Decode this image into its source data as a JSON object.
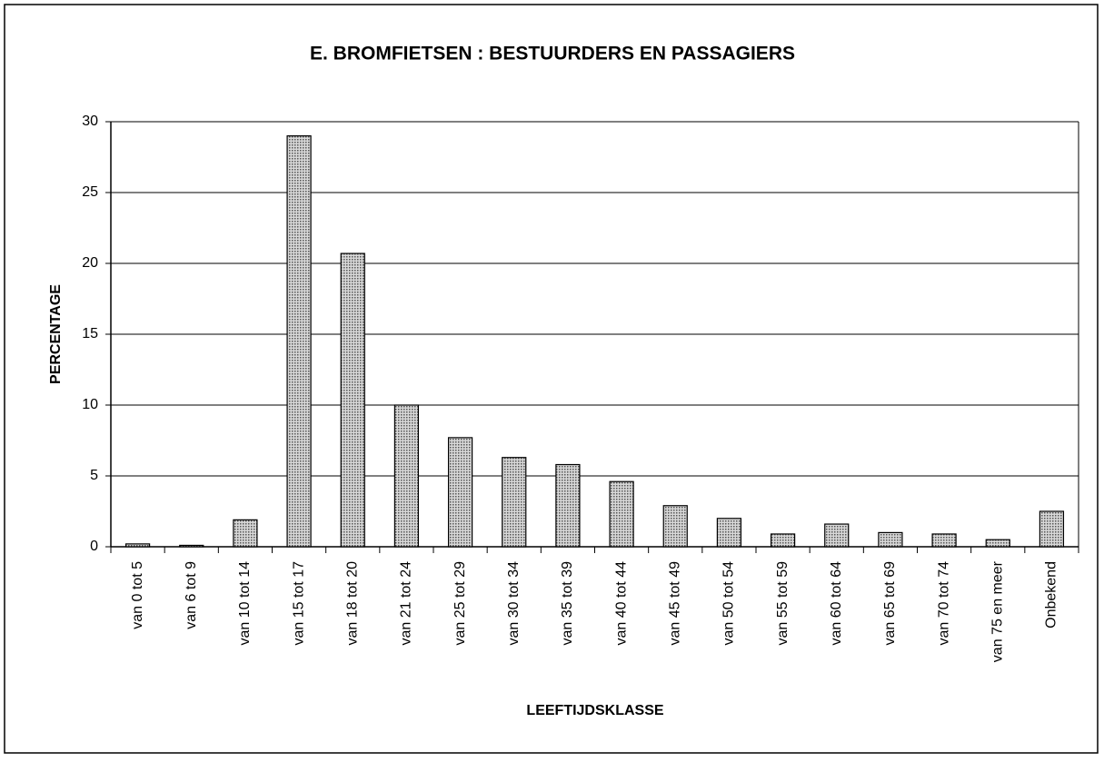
{
  "chart_data": {
    "type": "bar",
    "title": "E. BROMFIETSEN : BESTUURDERS EN PASSAGIERS",
    "x_label": "LEEFTIJDSKLASSE",
    "y_label": "PERCENTAGE",
    "categories": [
      "van 0 tot 5",
      "van 6 tot 9",
      "van 10 tot 14",
      "van 15 tot 17",
      "van 18 tot 20",
      "van 21 tot 24",
      "van 25 tot 29",
      "van 30 tot 34",
      "van 35 tot 39",
      "van 40 tot 44",
      "van 45 tot 49",
      "van 50 tot 54",
      "van 55 tot 59",
      "van 60 tot 64",
      "van 65 tot 69",
      "van 70 tot 74",
      "van 75 en meer",
      "Onbekend"
    ],
    "values": [
      0.2,
      0.1,
      1.9,
      29,
      20.7,
      10,
      7.7,
      6.3,
      5.8,
      4.6,
      2.9,
      2.0,
      0.9,
      1.6,
      1.0,
      0.9,
      0.5,
      2.5
    ],
    "color": "#a0a0a0",
    "ylim": [
      0,
      30
    ],
    "yticks": [
      0,
      5,
      10,
      15,
      20,
      25,
      30
    ],
    "grid": true
  }
}
